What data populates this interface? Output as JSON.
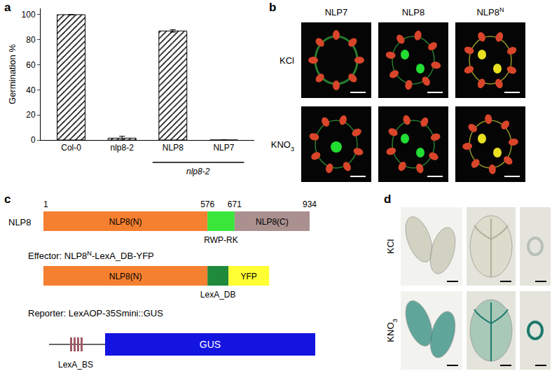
{
  "chart_data": {
    "type": "bar",
    "categories": [
      "Col-0",
      "nlp8-2",
      "NLP8",
      "NLP7"
    ],
    "values": [
      100,
      1.5,
      87,
      0
    ],
    "errors": [
      0,
      1.5,
      1,
      0
    ],
    "color": "#ffffff",
    "marker": "hatch",
    "ylabel": "Germination %",
    "ylim": [
      0,
      105
    ],
    "yticks": [
      0,
      20,
      40,
      60,
      80,
      100
    ],
    "annotations": [
      {
        "text": "nlp8-2",
        "under": [
          "NLP8",
          "NLP7"
        ]
      }
    ]
  },
  "panel_labels": [
    "a",
    "b",
    "c",
    "d"
  ],
  "panel_b": {
    "columns": [
      {
        "text": "NLP7"
      },
      {
        "text": "NLP8"
      },
      {
        "text": "NLP8",
        "sup": "N"
      }
    ],
    "rows": [
      {
        "text": "KCl"
      },
      {
        "text": "KNO",
        "sub": "3"
      }
    ]
  },
  "panel_c": {
    "protein": {
      "name": "NLP8",
      "positions": [
        1,
        576,
        671,
        934
      ],
      "domains": [
        "NLP8(N)",
        "RWP-RK",
        "NLP8(C)"
      ]
    },
    "effector": {
      "label": {
        "prefix": "Effector: ",
        "text": "NLP8",
        "sup": "N",
        "suffix": "-LexA_DB-YFP"
      },
      "parts": [
        "NLP8(N)",
        "LexA_DB",
        "YFP"
      ]
    },
    "reporter": {
      "label": {
        "text": "Reporter: LexAOP-35Smini::GUS"
      },
      "parts": [
        "LexA_BS",
        "GUS"
      ]
    }
  },
  "panel_d": {
    "rows": [
      {
        "text": "KCl"
      },
      {
        "text": "KNO",
        "sub": "3"
      }
    ]
  }
}
